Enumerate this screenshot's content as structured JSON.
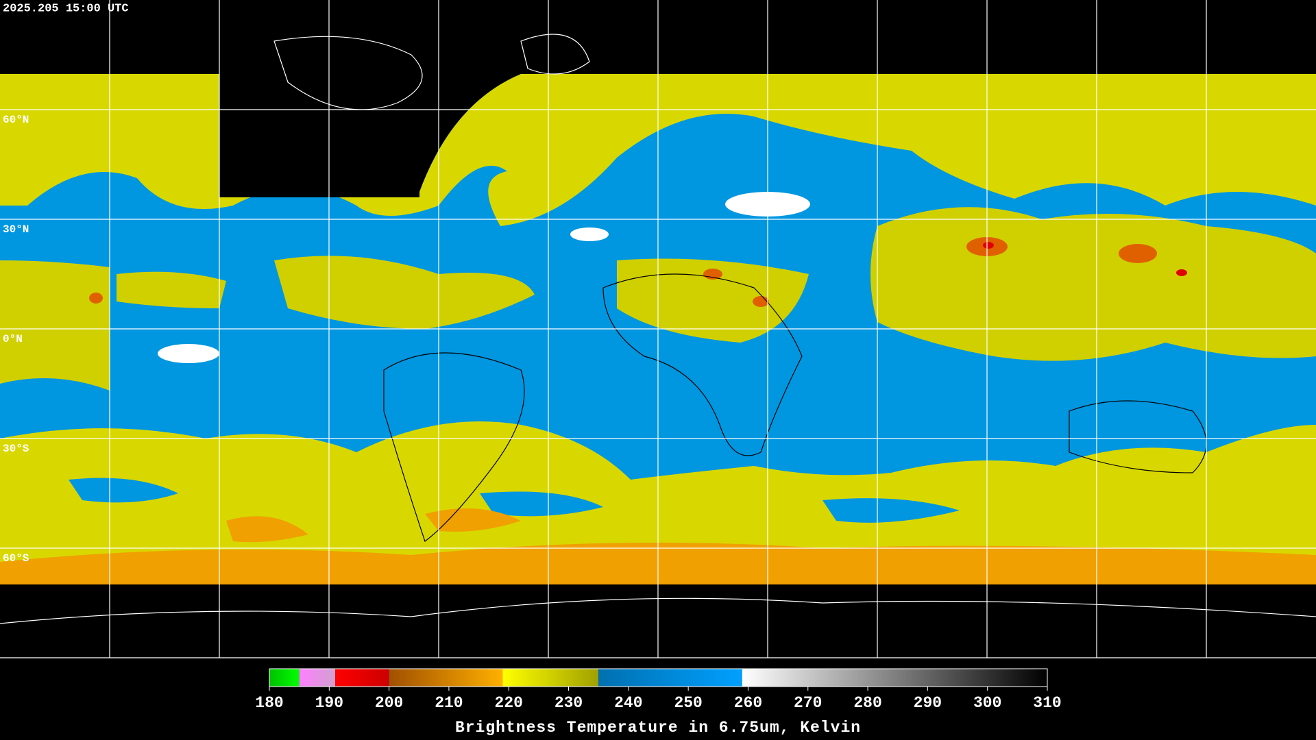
{
  "title": "2025.205 15:00 UTC",
  "lat_labels": [
    "60°N",
    "30°N",
    "0°N",
    "30°S",
    "60°S"
  ],
  "colorbar": {
    "label": "Brightness Temperature in 6.75um, Kelvin",
    "range": [
      180,
      310
    ],
    "ticks": [
      180,
      190,
      200,
      210,
      220,
      230,
      240,
      250,
      260,
      270,
      280,
      290,
      300,
      310
    ],
    "segments": [
      {
        "from": 180,
        "to": 185,
        "colors": [
          "#00c000",
          "#00ff00"
        ]
      },
      {
        "from": 185,
        "to": 191,
        "colors": [
          "#ff80ff",
          "#d0a0d0"
        ]
      },
      {
        "from": 191,
        "to": 200,
        "colors": [
          "#ff0000",
          "#cc0000"
        ]
      },
      {
        "from": 200,
        "to": 219,
        "colors": [
          "#a05000",
          "#ffb000"
        ]
      },
      {
        "from": 219,
        "to": 235,
        "colors": [
          "#ffff00",
          "#a0a000"
        ]
      },
      {
        "from": 235,
        "to": 259,
        "colors": [
          "#0070b0",
          "#00a0ff"
        ]
      },
      {
        "from": 259,
        "to": 310,
        "colors": [
          "#ffffff",
          "#000000"
        ]
      }
    ]
  }
}
